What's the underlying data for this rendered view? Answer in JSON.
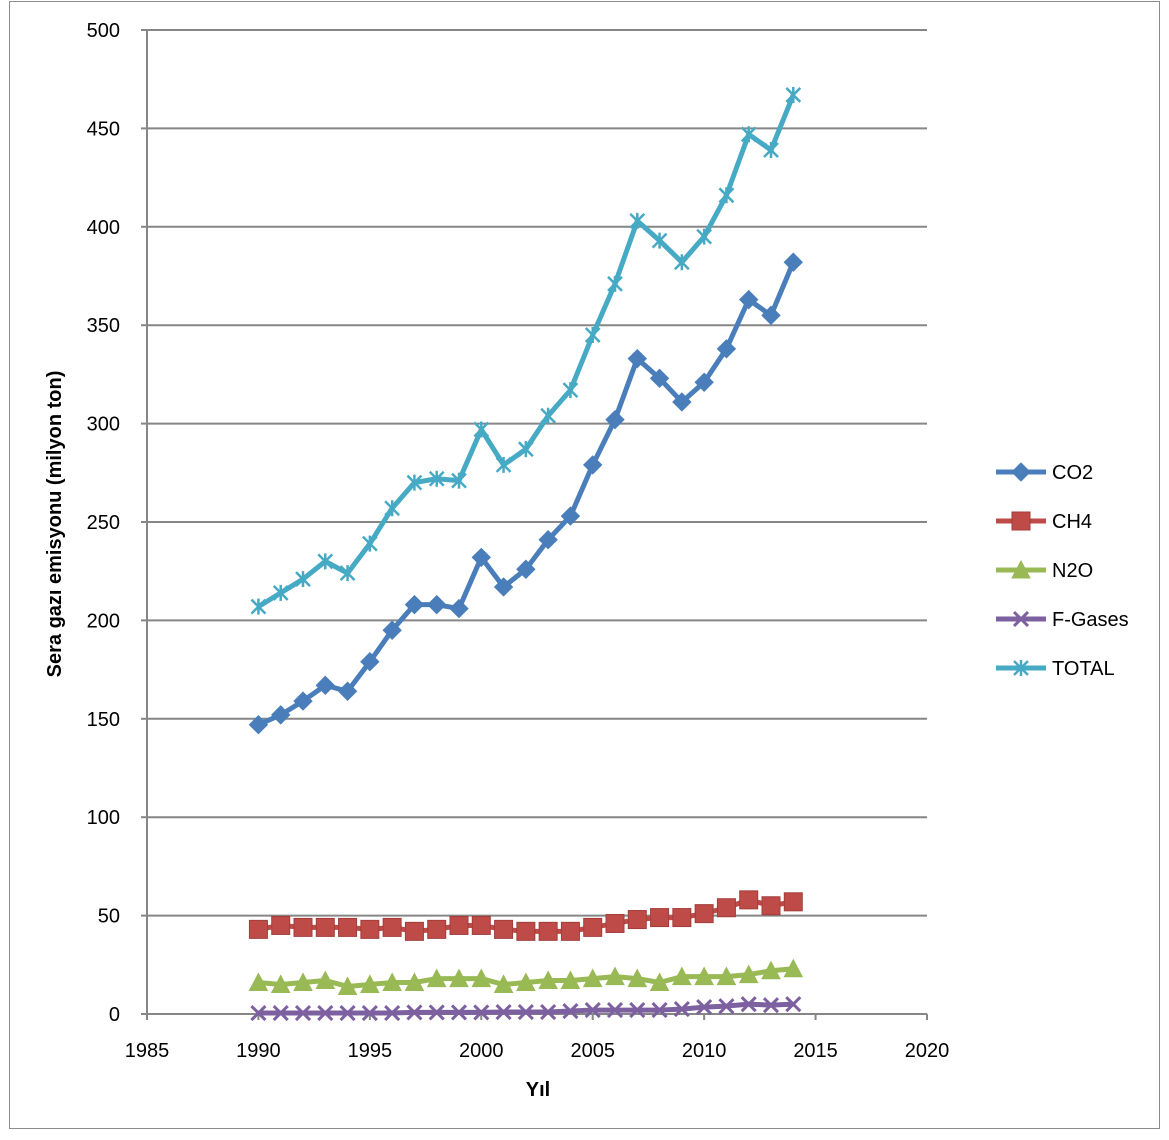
{
  "chart_data": {
    "type": "scatter",
    "title": "",
    "xlabel": "Yıl",
    "ylabel": "Sera gazı emisyonu (milyon ton)",
    "xlim": [
      1985,
      2020
    ],
    "ylim": [
      0,
      500
    ],
    "x_ticks": [
      1985,
      1990,
      1995,
      2000,
      2005,
      2010,
      2015,
      2020
    ],
    "y_ticks": [
      0,
      50,
      100,
      150,
      200,
      250,
      300,
      350,
      400,
      450,
      500
    ],
    "grid": "horizontal",
    "legend_position": "right",
    "x": [
      1990,
      1991,
      1992,
      1993,
      1994,
      1995,
      1996,
      1997,
      1998,
      1999,
      2000,
      2001,
      2002,
      2003,
      2004,
      2005,
      2006,
      2007,
      2008,
      2009,
      2010,
      2011,
      2012,
      2013,
      2014
    ],
    "series": [
      {
        "name": "CO2",
        "color": "#4a7ebb",
        "marker": "diamond",
        "values": [
          147,
          152,
          159,
          167,
          164,
          179,
          195,
          208,
          208,
          206,
          232,
          217,
          226,
          241,
          253,
          279,
          302,
          333,
          323,
          311,
          321,
          338,
          363,
          355,
          382
        ]
      },
      {
        "name": "CH4",
        "color": "#be4b48",
        "marker": "square",
        "values": [
          43,
          45,
          44,
          44,
          44,
          43,
          44,
          42,
          43,
          45,
          45,
          43,
          42,
          42,
          42,
          44,
          46,
          48,
          49,
          49,
          51,
          54,
          58,
          55,
          57
        ]
      },
      {
        "name": "N2O",
        "color": "#98b954",
        "marker": "triangle",
        "values": [
          16,
          15,
          16,
          17,
          14,
          15,
          16,
          16,
          18,
          18,
          18,
          15,
          16,
          17,
          17,
          18,
          19,
          18,
          16,
          19,
          19,
          19,
          20,
          22,
          23
        ]
      },
      {
        "name": "F-Gases",
        "color": "#7d60a0",
        "marker": "x",
        "values": [
          0.5,
          0.5,
          0.5,
          0.5,
          0.5,
          0.5,
          0.5,
          0.8,
          0.8,
          0.8,
          0.8,
          1,
          1,
          1,
          1.5,
          2,
          2,
          2,
          2,
          2.5,
          3.5,
          4,
          5,
          4.5,
          5
        ]
      },
      {
        "name": "TOTAL",
        "color": "#46aac5",
        "marker": "star",
        "values": [
          207,
          214,
          221,
          230,
          224,
          239,
          257,
          270,
          272,
          271,
          297,
          279,
          287,
          304,
          317,
          345,
          371,
          403,
          393,
          382,
          395,
          416,
          447,
          439,
          467
        ]
      }
    ]
  }
}
